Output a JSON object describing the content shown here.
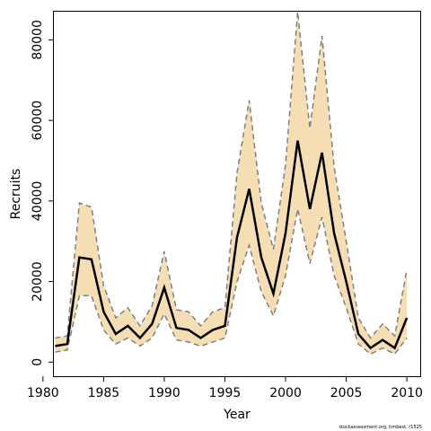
{
  "chart_data": {
    "type": "line",
    "title": "",
    "xlabel": "Year",
    "ylabel": "Recruits",
    "xlim": [
      1980.9,
      2011.1
    ],
    "ylim": [
      -3500,
      87000
    ],
    "xticks": [
      "1980",
      "1985",
      "1990",
      "1995",
      "2000",
      "2005",
      "2010"
    ],
    "yticks": [
      "0",
      "20000",
      "40000",
      "60000",
      "80000"
    ],
    "x": [
      1981,
      1982,
      1983,
      1984,
      1985,
      1986,
      1987,
      1988,
      1989,
      1990,
      1991,
      1992,
      1993,
      1994,
      1995,
      1996,
      1997,
      1998,
      1999,
      2000,
      2001,
      2002,
      2003,
      2004,
      2005,
      2006,
      2007,
      2008,
      2009,
      2010
    ],
    "series": [
      {
        "role": "estimate",
        "values": [
          4000,
          4500,
          26000,
          25500,
          12500,
          7000,
          9000,
          6000,
          9500,
          18500,
          8500,
          8000,
          6000,
          8000,
          9000,
          31000,
          43000,
          26000,
          17000,
          32000,
          55000,
          38000,
          52000,
          32000,
          20000,
          7000,
          3500,
          5500,
          3500,
          11000
        ]
      },
      {
        "role": "upper",
        "values": [
          6000,
          6500,
          39500,
          38500,
          19000,
          11000,
          13500,
          9000,
          14000,
          27500,
          13000,
          12500,
          9000,
          12500,
          13500,
          47000,
          65000,
          39500,
          28000,
          49000,
          87000,
          58000,
          81000,
          48500,
          30000,
          11000,
          6000,
          9500,
          6500,
          23000
        ]
      },
      {
        "role": "lower",
        "values": [
          2500,
          3000,
          16500,
          16500,
          8000,
          4500,
          6000,
          4000,
          6000,
          12000,
          5500,
          5000,
          4000,
          5000,
          6000,
          20000,
          29000,
          17500,
          11500,
          21500,
          38000,
          24500,
          36000,
          21500,
          13500,
          4500,
          2000,
          3500,
          2000,
          6000
        ]
      }
    ],
    "colors": {
      "band": "#f5deb3",
      "estimate": "#000000",
      "bounds": "#808080",
      "axis": "#000000"
    },
    "grid": false,
    "legend": "none"
  },
  "footer": {
    "source": "stockassessment.org, hmbest, r1525"
  }
}
